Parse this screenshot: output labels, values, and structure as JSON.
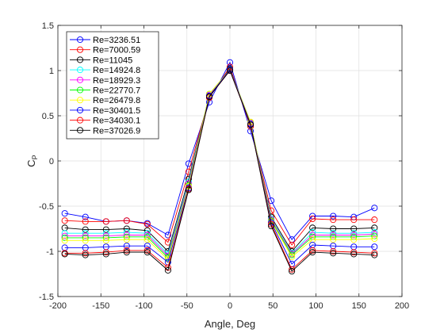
{
  "chart_data": {
    "type": "line",
    "title": "",
    "xlabel": "Angle, Deg",
    "ylabel": "C",
    "ylabel_subscript": "P",
    "xlim": [
      -200,
      200
    ],
    "ylim": [
      -1.5,
      1.5
    ],
    "xticks": [
      -200,
      -150,
      -100,
      -50,
      0,
      50,
      100,
      150,
      200
    ],
    "yticks": [
      -1.5,
      -1,
      -0.5,
      0,
      0.5,
      1,
      1.5
    ],
    "grid": true,
    "legend_position": "top-left",
    "marker": "circle",
    "x": [
      -192,
      -168,
      -144,
      -120,
      -96,
      -72,
      -48,
      -24,
      0,
      24,
      48,
      72,
      96,
      120,
      144,
      168
    ],
    "series": [
      {
        "name": "Re=3236.51",
        "color": "#0000ff",
        "values": [
          -0.58,
          -0.62,
          -0.67,
          -0.66,
          -0.69,
          -0.82,
          -0.03,
          0.65,
          1.09,
          0.33,
          -0.44,
          -0.87,
          -0.61,
          -0.61,
          -0.62,
          -0.52
        ]
      },
      {
        "name": "Re=7000.59",
        "color": "#ff0000",
        "values": [
          -0.66,
          -0.67,
          -0.67,
          -0.66,
          -0.7,
          -0.9,
          -0.12,
          0.7,
          1.04,
          0.38,
          -0.55,
          -0.93,
          -0.64,
          -0.65,
          -0.65,
          -0.65
        ]
      },
      {
        "name": "Re=11045",
        "color": "#000000",
        "values": [
          -0.74,
          -0.76,
          -0.76,
          -0.75,
          -0.77,
          -1.0,
          -0.2,
          0.72,
          1.02,
          0.4,
          -0.62,
          -1.0,
          -0.74,
          -0.75,
          -0.75,
          -0.74
        ]
      },
      {
        "name": "Re=14924.8",
        "color": "#00ffff",
        "values": [
          -0.8,
          -0.8,
          -0.8,
          -0.79,
          -0.8,
          -1.03,
          -0.23,
          0.73,
          1.01,
          0.42,
          -0.64,
          -1.02,
          -0.79,
          -0.8,
          -0.8,
          -0.79
        ]
      },
      {
        "name": "Re=18929.3",
        "color": "#ff00ff",
        "values": [
          -0.83,
          -0.83,
          -0.83,
          -0.82,
          -0.82,
          -1.05,
          -0.25,
          0.73,
          1.01,
          0.42,
          -0.65,
          -1.03,
          -0.82,
          -0.82,
          -0.82,
          -0.81
        ]
      },
      {
        "name": "Re=22770.7",
        "color": "#00ff00",
        "values": [
          -0.85,
          -0.85,
          -0.85,
          -0.84,
          -0.84,
          -1.07,
          -0.27,
          0.74,
          1.01,
          0.43,
          -0.66,
          -1.04,
          -0.84,
          -0.84,
          -0.84,
          -0.83
        ]
      },
      {
        "name": "Re=26479.8",
        "color": "#ffff00",
        "values": [
          -0.88,
          -0.88,
          -0.88,
          -0.87,
          -0.87,
          -1.09,
          -0.28,
          0.74,
          1.01,
          0.43,
          -0.67,
          -1.06,
          -0.87,
          -0.87,
          -0.87,
          -0.86
        ]
      },
      {
        "name": "Re=30401.5",
        "color": "#0000ff",
        "values": [
          -0.96,
          -0.96,
          -0.95,
          -0.94,
          -0.94,
          -1.12,
          -0.3,
          0.72,
          1.01,
          0.41,
          -0.68,
          -1.14,
          -0.93,
          -0.94,
          -0.95,
          -0.95
        ]
      },
      {
        "name": "Re=34030.1",
        "color": "#ff0000",
        "values": [
          -1.02,
          -1.02,
          -1.01,
          -0.99,
          -0.99,
          -1.18,
          -0.31,
          0.71,
          1.0,
          0.4,
          -0.7,
          -1.2,
          -0.99,
          -1.0,
          -1.01,
          -1.02
        ]
      },
      {
        "name": "Re=37026.9",
        "color": "#000000",
        "values": [
          -1.03,
          -1.04,
          -1.03,
          -1.01,
          -1.01,
          -1.21,
          -0.32,
          0.71,
          1.0,
          0.4,
          -0.72,
          -1.22,
          -1.01,
          -1.02,
          -1.03,
          -1.04
        ]
      }
    ]
  }
}
